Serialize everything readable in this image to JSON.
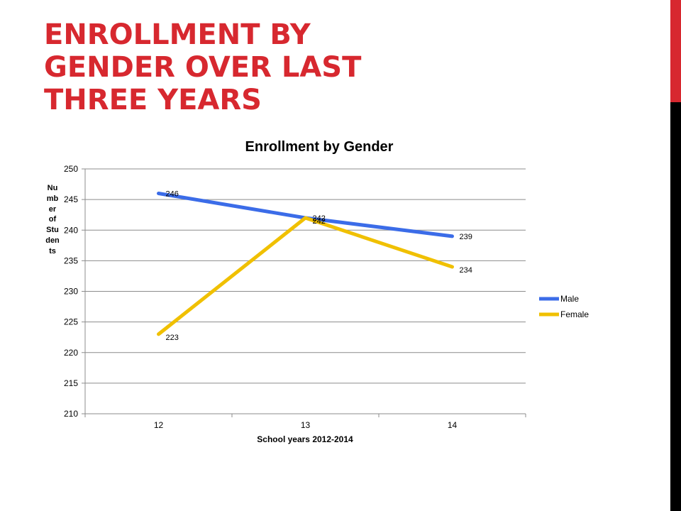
{
  "slide": {
    "title_lines": [
      "ENROLLMENT BY",
      "GENDER OVER LAST",
      "THREE YEARS"
    ]
  },
  "colors": {
    "accent": "#d7282f",
    "male": "#3b6ce8",
    "female": "#f0c000"
  },
  "chart_data": {
    "type": "line",
    "title": "Enrollment by Gender",
    "xlabel": "School years 2012-2014",
    "ylabel": "Number of Students",
    "categories": [
      "12",
      "13",
      "14"
    ],
    "series": [
      {
        "name": "Male",
        "values": [
          246,
          242,
          239
        ],
        "color": "#3b6ce8"
      },
      {
        "name": "Female",
        "values": [
          223,
          242,
          234
        ],
        "color": "#f0c000"
      }
    ],
    "ylim": [
      210,
      250
    ],
    "yticks": [
      210,
      215,
      220,
      225,
      230,
      235,
      240,
      245,
      250
    ],
    "grid": true,
    "legend": "right",
    "data_labels": true
  }
}
